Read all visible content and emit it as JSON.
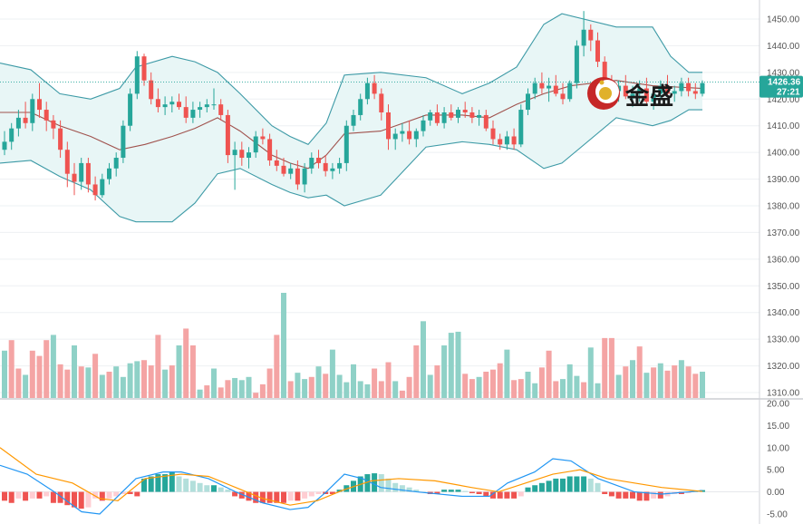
{
  "watermark": {
    "text": "金盛",
    "icon": "gold-coin-logo-icon"
  },
  "colors": {
    "up": "#26a69a",
    "down": "#ef5350",
    "up_vol": "#8fd1c7",
    "down_vol": "#f4a4a4",
    "band_line": "#3d9aa6",
    "band_fill": "#e8f6f6",
    "basis": "#a0524d",
    "macd": "#2196f3",
    "signal": "#ff9800",
    "hist_up_strong": "#26a69a",
    "hist_up_weak": "#b2dfdb",
    "hist_dn_strong": "#ef5350",
    "hist_dn_weak": "#ffcdd2",
    "last_tag": "#26a69a"
  },
  "chart_data": {
    "type": "candlestick",
    "price_axis": {
      "range": [
        1305,
        1455
      ],
      "ticks": [
        "1450.00",
        "1440.00",
        "1430.00",
        "1420.00",
        "1410.00",
        "1400.00",
        "1390.00",
        "1380.00",
        "1370.00",
        "1360.00",
        "1350.00",
        "1340.00",
        "1330.00",
        "1320.00",
        "1310.00"
      ]
    },
    "last_price": "1426.36",
    "countdown": "27:21",
    "ohlc": [
      [
        1401,
        1408,
        1399,
        1404
      ],
      [
        1404,
        1411,
        1401,
        1409
      ],
      [
        1409,
        1416,
        1406,
        1413
      ],
      [
        1413,
        1419,
        1409,
        1411
      ],
      [
        1411,
        1422,
        1408,
        1420
      ],
      [
        1420,
        1426,
        1413,
        1416
      ],
      [
        1416,
        1419,
        1408,
        1412
      ],
      [
        1412,
        1414,
        1405,
        1409
      ],
      [
        1409,
        1412,
        1398,
        1401
      ],
      [
        1401,
        1404,
        1387,
        1392
      ],
      [
        1392,
        1396,
        1384,
        1389
      ],
      [
        1389,
        1398,
        1386,
        1396
      ],
      [
        1396,
        1398,
        1385,
        1388
      ],
      [
        1388,
        1391,
        1382,
        1384
      ],
      [
        1384,
        1392,
        1383,
        1390
      ],
      [
        1390,
        1396,
        1388,
        1394
      ],
      [
        1394,
        1400,
        1391,
        1398
      ],
      [
        1398,
        1412,
        1396,
        1410
      ],
      [
        1410,
        1424,
        1408,
        1422
      ],
      [
        1422,
        1438,
        1420,
        1436
      ],
      [
        1436,
        1437,
        1425,
        1427
      ],
      [
        1427,
        1430,
        1418,
        1420
      ],
      [
        1420,
        1424,
        1415,
        1417
      ],
      [
        1417,
        1421,
        1414,
        1418
      ],
      [
        1418,
        1421,
        1415,
        1419
      ],
      [
        1419,
        1422,
        1416,
        1417
      ],
      [
        1417,
        1421,
        1411,
        1413
      ],
      [
        1413,
        1419,
        1411,
        1416
      ],
      [
        1416,
        1419,
        1413,
        1417
      ],
      [
        1417,
        1420,
        1415,
        1418
      ],
      [
        1418,
        1424,
        1416,
        1418
      ],
      [
        1418,
        1420,
        1412,
        1414
      ],
      [
        1414,
        1416,
        1396,
        1399
      ],
      [
        1399,
        1404,
        1386,
        1401
      ],
      [
        1401,
        1404,
        1395,
        1398
      ],
      [
        1398,
        1402,
        1394,
        1400
      ],
      [
        1400,
        1408,
        1398,
        1406
      ],
      [
        1406,
        1409,
        1403,
        1405
      ],
      [
        1405,
        1407,
        1395,
        1397
      ],
      [
        1397,
        1401,
        1393,
        1395
      ],
      [
        1395,
        1398,
        1391,
        1392
      ],
      [
        1392,
        1396,
        1390,
        1394
      ],
      [
        1394,
        1397,
        1386,
        1388
      ],
      [
        1388,
        1396,
        1385,
        1394
      ],
      [
        1394,
        1400,
        1392,
        1398
      ],
      [
        1398,
        1401,
        1394,
        1396
      ],
      [
        1396,
        1399,
        1391,
        1393
      ],
      [
        1393,
        1396,
        1390,
        1394
      ],
      [
        1394,
        1398,
        1392,
        1396
      ],
      [
        1396,
        1412,
        1393,
        1410
      ],
      [
        1410,
        1416,
        1408,
        1414
      ],
      [
        1414,
        1422,
        1412,
        1420
      ],
      [
        1420,
        1428,
        1418,
        1426
      ],
      [
        1426,
        1429,
        1420,
        1422
      ],
      [
        1422,
        1424,
        1412,
        1415
      ],
      [
        1415,
        1418,
        1401,
        1405
      ],
      [
        1405,
        1409,
        1401,
        1407
      ],
      [
        1407,
        1411,
        1404,
        1408
      ],
      [
        1408,
        1412,
        1403,
        1405
      ],
      [
        1405,
        1409,
        1402,
        1408
      ],
      [
        1408,
        1414,
        1406,
        1412
      ],
      [
        1412,
        1416,
        1410,
        1415
      ],
      [
        1415,
        1418,
        1410,
        1411
      ],
      [
        1411,
        1417,
        1409,
        1415
      ],
      [
        1415,
        1418,
        1412,
        1413
      ],
      [
        1413,
        1417,
        1411,
        1416
      ],
      [
        1416,
        1419,
        1413,
        1415
      ],
      [
        1415,
        1417,
        1411,
        1413
      ],
      [
        1413,
        1416,
        1410,
        1414
      ],
      [
        1414,
        1416,
        1408,
        1409
      ],
      [
        1409,
        1412,
        1403,
        1405
      ],
      [
        1405,
        1407,
        1401,
        1403
      ],
      [
        1403,
        1408,
        1401,
        1406
      ],
      [
        1406,
        1409,
        1401,
        1403
      ],
      [
        1403,
        1418,
        1402,
        1416
      ],
      [
        1416,
        1424,
        1414,
        1422
      ],
      [
        1422,
        1428,
        1420,
        1426
      ],
      [
        1426,
        1430,
        1422,
        1424
      ],
      [
        1424,
        1428,
        1419,
        1425
      ],
      [
        1425,
        1429,
        1421,
        1422
      ],
      [
        1422,
        1426,
        1418,
        1420
      ],
      [
        1420,
        1427,
        1419,
        1426
      ],
      [
        1426,
        1442,
        1424,
        1440
      ],
      [
        1440,
        1453,
        1436,
        1446
      ],
      [
        1446,
        1448,
        1438,
        1442
      ],
      [
        1442,
        1445,
        1432,
        1434
      ],
      [
        1434,
        1436,
        1424,
        1426
      ],
      [
        1426,
        1429,
        1421,
        1423
      ],
      [
        1423,
        1427,
        1419,
        1425
      ],
      [
        1425,
        1429,
        1420,
        1421
      ],
      [
        1421,
        1425,
        1417,
        1422
      ],
      [
        1422,
        1427,
        1419,
        1424
      ],
      [
        1424,
        1428,
        1418,
        1419
      ],
      [
        1419,
        1424,
        1416,
        1422
      ],
      [
        1422,
        1427,
        1420,
        1425
      ],
      [
        1425,
        1429,
        1421,
        1422
      ],
      [
        1422,
        1425,
        1419,
        1423
      ],
      [
        1423,
        1428,
        1421,
        1426
      ],
      [
        1426,
        1428,
        1421,
        1423
      ],
      [
        1423,
        1426,
        1420,
        1422
      ],
      [
        1422,
        1427,
        1421,
        1426
      ]
    ],
    "bollinger": {
      "upper": [
        [
          0,
          1433.5
        ],
        [
          34,
          1431
        ],
        [
          66,
          1422
        ],
        [
          100,
          1420
        ],
        [
          132,
          1424
        ],
        [
          150,
          1432
        ],
        [
          190,
          1436
        ],
        [
          215,
          1434
        ],
        [
          240,
          1430
        ],
        [
          265,
          1422
        ],
        [
          300,
          1410
        ],
        [
          320,
          1406
        ],
        [
          340,
          1403
        ],
        [
          360,
          1411
        ],
        [
          380,
          1429
        ],
        [
          420,
          1430
        ],
        [
          470,
          1428
        ],
        [
          510,
          1422
        ],
        [
          540,
          1426
        ],
        [
          570,
          1432
        ],
        [
          600,
          1448
        ],
        [
          620,
          1452
        ],
        [
          680,
          1447
        ],
        [
          720,
          1447
        ],
        [
          740,
          1436
        ],
        [
          760,
          1430
        ],
        [
          775,
          1430
        ]
      ],
      "lower": [
        [
          0,
          1396
        ],
        [
          34,
          1397
        ],
        [
          66,
          1391
        ],
        [
          100,
          1386
        ],
        [
          132,
          1376
        ],
        [
          150,
          1374
        ],
        [
          190,
          1374
        ],
        [
          215,
          1381
        ],
        [
          240,
          1392
        ],
        [
          265,
          1394
        ],
        [
          300,
          1388
        ],
        [
          320,
          1385
        ],
        [
          340,
          1383
        ],
        [
          360,
          1384
        ],
        [
          380,
          1380
        ],
        [
          420,
          1384
        ],
        [
          470,
          1402
        ],
        [
          510,
          1404
        ],
        [
          540,
          1403
        ],
        [
          570,
          1401
        ],
        [
          600,
          1394
        ],
        [
          620,
          1396
        ],
        [
          680,
          1413
        ],
        [
          720,
          1410
        ],
        [
          740,
          1412
        ],
        [
          760,
          1416
        ],
        [
          775,
          1416
        ]
      ],
      "basis": [
        [
          0,
          1415
        ],
        [
          34,
          1415
        ],
        [
          66,
          1410
        ],
        [
          100,
          1406
        ],
        [
          132,
          1401
        ],
        [
          160,
          1403
        ],
        [
          190,
          1406
        ],
        [
          215,
          1409
        ],
        [
          240,
          1413
        ],
        [
          265,
          1408
        ],
        [
          300,
          1399
        ],
        [
          320,
          1396
        ],
        [
          340,
          1394
        ],
        [
          360,
          1399
        ],
        [
          380,
          1407
        ],
        [
          420,
          1408
        ],
        [
          470,
          1414
        ],
        [
          510,
          1414
        ],
        [
          540,
          1413
        ],
        [
          570,
          1418
        ],
        [
          600,
          1422
        ],
        [
          630,
          1425
        ],
        [
          680,
          1427
        ],
        [
          720,
          1425
        ],
        [
          775,
          1424
        ]
      ]
    },
    "volume": {
      "ticks": [
        "20.00",
        "15.00",
        "10.00",
        "5.00",
        "0.00",
        "-5.00"
      ],
      "values": [
        0.45,
        0.55,
        0.28,
        0.22,
        0.45,
        0.4,
        0.55,
        0.6,
        0.32,
        0.27,
        0.5,
        0.3,
        0.29,
        0.42,
        0.22,
        0.25,
        0.3,
        0.2,
        0.33,
        0.35,
        0.36,
        0.31,
        0.6,
        0.27,
        0.31,
        0.5,
        0.66,
        0.5,
        0.08,
        0.12,
        0.28,
        0.1,
        0.17,
        0.19,
        0.17,
        0.2,
        0.05,
        0.13,
        0.28,
        0.6,
        1.0,
        0.16,
        0.24,
        0.18,
        0.2,
        0.3,
        0.23,
        0.46,
        0.22,
        0.15,
        0.32,
        0.16,
        0.13,
        0.28,
        0.16,
        0.34,
        0.16,
        0.07,
        0.2,
        0.5,
        0.73,
        0.22,
        0.31,
        0.5,
        0.62,
        0.63,
        0.23,
        0.18,
        0.2,
        0.25,
        0.27,
        0.33,
        0.46,
        0.17,
        0.18,
        0.25,
        0.14,
        0.29,
        0.45,
        0.16,
        0.18,
        0.32,
        0.21,
        0.15,
        0.48,
        0.14,
        0.57,
        0.57,
        0.22,
        0.3,
        0.36,
        0.49,
        0.24,
        0.29,
        0.33,
        0.26,
        0.31,
        0.36,
        0.3,
        0.23,
        0.25
      ],
      "up": [
        1,
        0,
        0,
        1,
        0,
        0,
        0,
        1,
        0,
        0,
        1,
        0,
        1,
        0,
        1,
        0,
        1,
        1,
        1,
        1,
        0,
        0,
        0,
        1,
        0,
        1,
        0,
        0,
        1,
        0,
        1,
        0,
        0,
        1,
        1,
        1,
        0,
        0,
        0,
        0,
        1,
        0,
        1,
        1,
        0,
        1,
        0,
        1,
        1,
        1,
        1,
        1,
        1,
        0,
        0,
        0,
        1,
        0,
        0,
        0,
        1,
        1,
        0,
        1,
        1,
        1,
        0,
        0,
        1,
        0,
        0,
        0,
        1,
        0,
        0,
        1,
        1,
        0,
        0,
        0,
        1,
        1,
        1,
        0,
        1,
        1,
        0,
        0,
        1,
        0,
        1,
        0,
        1,
        0,
        1,
        0,
        0,
        1,
        0,
        0,
        1
      ]
    },
    "macd": {
      "range": [
        -6.5,
        20
      ],
      "macd_line": [
        [
          0,
          6
        ],
        [
          30,
          4
        ],
        [
          60,
          0
        ],
        [
          90,
          -4.5
        ],
        [
          110,
          -5
        ],
        [
          130,
          -1
        ],
        [
          150,
          3
        ],
        [
          180,
          4.5
        ],
        [
          200,
          4.5
        ],
        [
          230,
          3
        ],
        [
          260,
          0
        ],
        [
          290,
          -2.5
        ],
        [
          320,
          -4
        ],
        [
          340,
          -3.5
        ],
        [
          360,
          0
        ],
        [
          380,
          4
        ],
        [
          400,
          3
        ],
        [
          420,
          1
        ],
        [
          460,
          0
        ],
        [
          510,
          -1
        ],
        [
          540,
          -1
        ],
        [
          560,
          2
        ],
        [
          590,
          4.5
        ],
        [
          610,
          7.5
        ],
        [
          630,
          7
        ],
        [
          660,
          3
        ],
        [
          700,
          0
        ],
        [
          730,
          -0.5
        ],
        [
          760,
          0
        ],
        [
          775,
          0.3
        ]
      ],
      "signal_line": [
        [
          0,
          10
        ],
        [
          40,
          4
        ],
        [
          80,
          2
        ],
        [
          110,
          -1.5
        ],
        [
          130,
          -2
        ],
        [
          160,
          3
        ],
        [
          200,
          4
        ],
        [
          230,
          3.5
        ],
        [
          260,
          1
        ],
        [
          290,
          -1.5
        ],
        [
          320,
          -3
        ],
        [
          350,
          -2
        ],
        [
          380,
          0.5
        ],
        [
          410,
          2.5
        ],
        [
          440,
          3
        ],
        [
          480,
          2.5
        ],
        [
          520,
          1
        ],
        [
          550,
          0
        ],
        [
          580,
          2
        ],
        [
          610,
          4
        ],
        [
          640,
          5
        ],
        [
          670,
          3
        ],
        [
          700,
          2
        ],
        [
          730,
          1
        ],
        [
          775,
          0.1
        ]
      ],
      "histogram": [
        -2,
        -2.5,
        -1.5,
        -2,
        -1.5,
        -1.5,
        -1,
        -2.5,
        -2.5,
        -3,
        -3.5,
        -3.8,
        -3.5,
        -1.5,
        -2,
        -1.5,
        -1,
        -0.5,
        -0.5,
        -1,
        3,
        3.5,
        4,
        4,
        4.5,
        3.5,
        3,
        2.5,
        2,
        1.5,
        1.5,
        1,
        0.5,
        -1,
        -1.5,
        -2,
        -2.5,
        -2.5,
        -2.5,
        -2.5,
        -2.5,
        -2,
        -2,
        -1.5,
        -1,
        -0.5,
        -0.5,
        -0.5,
        0.5,
        1.5,
        2.5,
        3.5,
        4,
        4.2,
        4,
        3,
        2,
        1.5,
        1,
        0.5,
        0,
        -0.5,
        -0.5,
        0.5,
        0.5,
        0.5,
        0.2,
        -0.3,
        -0.5,
        -1,
        -1.5,
        -1.5,
        -1.5,
        -1.5,
        -1,
        1,
        1.5,
        2,
        2.5,
        3,
        3,
        3.5,
        3.5,
        3.5,
        3,
        2,
        -0.5,
        -1,
        -1.5,
        -1.5,
        -1.5,
        -2,
        -2,
        -1.5,
        -1.5,
        -1,
        -0.5,
        -0.5,
        -0.3,
        0.2,
        0.4
      ]
    }
  }
}
